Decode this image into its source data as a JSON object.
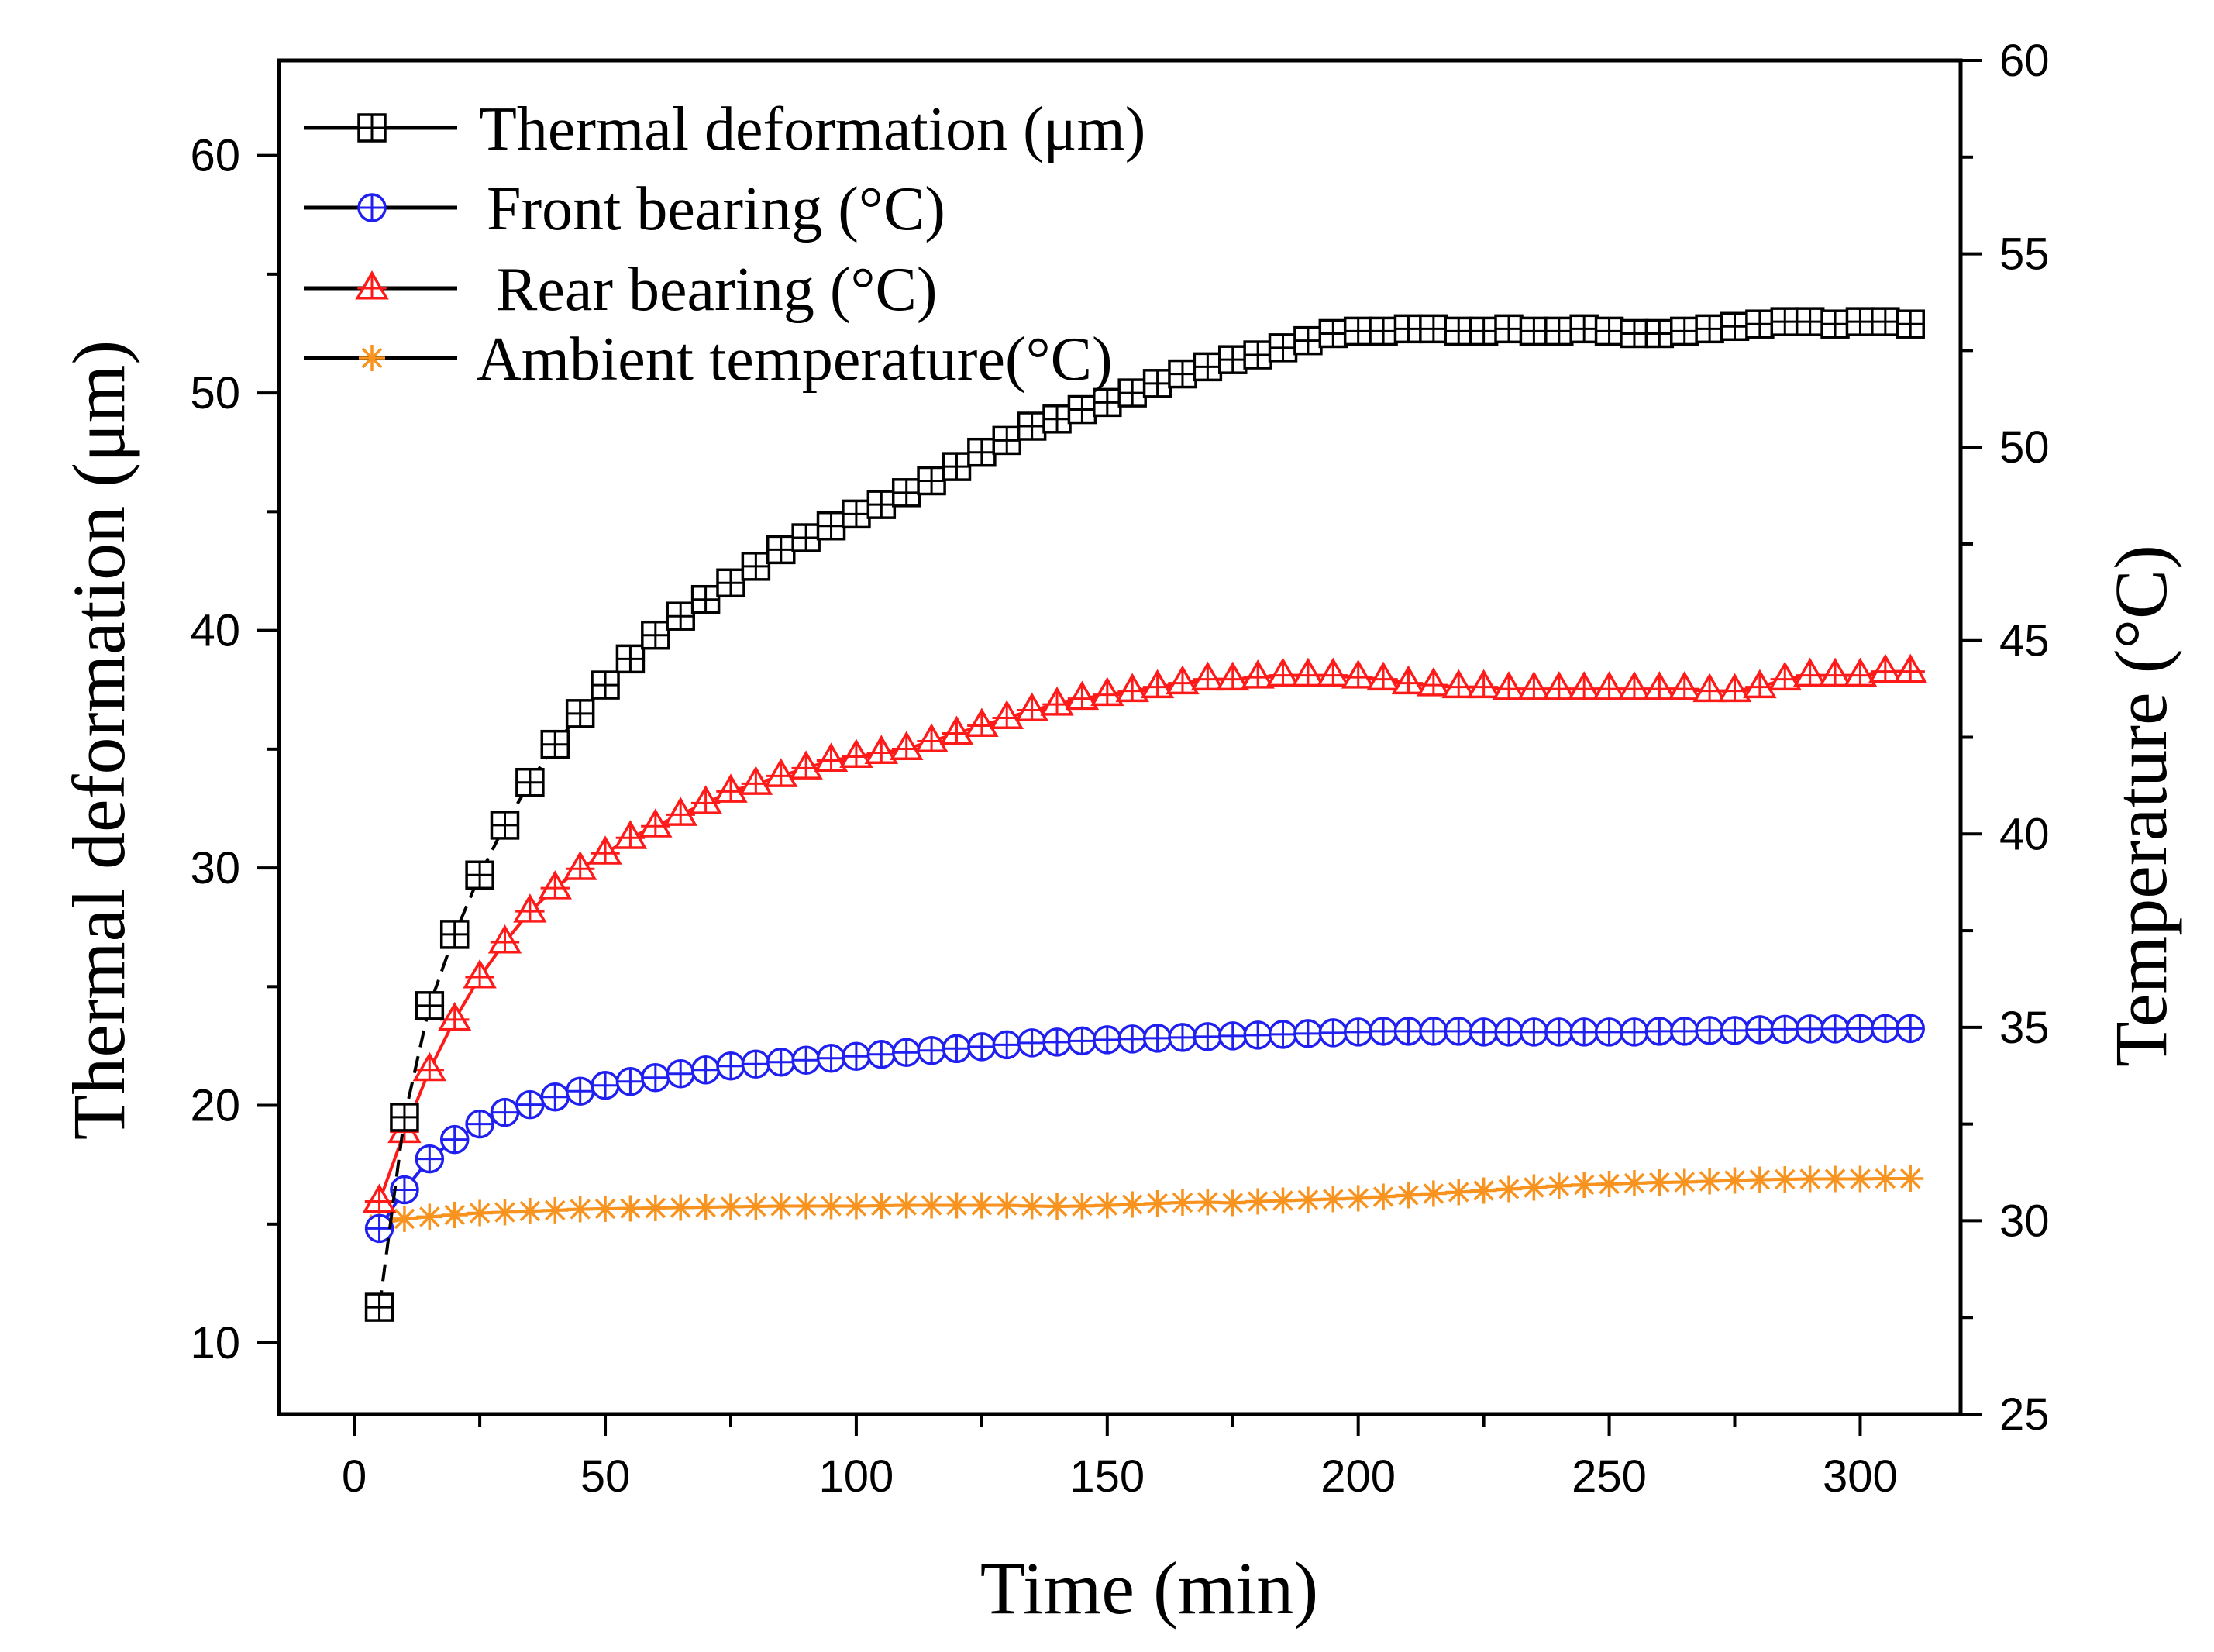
{
  "chart_data": {
    "type": "line",
    "title": "",
    "xlabel": "Time (min)",
    "ylabel_left": "Thermal deformation (μm)",
    "ylabel_right": "Temperature (°C)",
    "xlim": [
      -15,
      320
    ],
    "ylim_left": [
      7,
      64
    ],
    "ylim_right": [
      25,
      60
    ],
    "x_ticks": [
      0,
      50,
      100,
      150,
      200,
      250,
      300
    ],
    "y_left_ticks": [
      10,
      20,
      30,
      40,
      50,
      60
    ],
    "y_right_ticks": [
      25,
      30,
      35,
      40,
      45,
      50,
      55,
      60
    ],
    "grid": false,
    "legend_position": "top-left",
    "series": [
      {
        "name": "Thermal deformation (μm)",
        "axis": "left",
        "marker": "square-plus",
        "color": "#000000",
        "line_style": "dashed",
        "x": [
          5,
          10,
          15,
          20,
          25,
          30,
          35,
          40,
          45,
          50,
          55,
          60,
          65,
          70,
          75,
          80,
          85,
          90,
          95,
          100,
          105,
          110,
          115,
          120,
          125,
          130,
          135,
          140,
          145,
          150,
          155,
          160,
          165,
          170,
          175,
          180,
          185,
          190,
          195,
          200,
          205,
          210,
          215,
          220,
          225,
          230,
          235,
          240,
          245,
          250,
          255,
          260,
          265,
          270,
          275,
          280,
          285,
          290,
          295,
          300,
          305,
          310
        ],
        "values": [
          11.5,
          19.5,
          24.2,
          27.2,
          29.7,
          31.8,
          33.6,
          35.2,
          36.5,
          37.7,
          38.8,
          39.8,
          40.6,
          41.3,
          42.0,
          42.7,
          43.4,
          43.9,
          44.4,
          44.9,
          45.3,
          45.8,
          46.3,
          46.9,
          47.5,
          48.0,
          48.6,
          48.9,
          49.3,
          49.6,
          50.0,
          50.4,
          50.8,
          51.1,
          51.4,
          51.6,
          51.9,
          52.2,
          52.5,
          52.6,
          52.6,
          52.7,
          52.7,
          52.6,
          52.6,
          52.7,
          52.6,
          52.6,
          52.7,
          52.6,
          52.5,
          52.5,
          52.6,
          52.7,
          52.8,
          52.9,
          53.0,
          53.0,
          52.9,
          53.0,
          53.0,
          52.9
        ]
      },
      {
        "name": "Front bearing (°C)",
        "axis": "right",
        "marker": "circle-plus",
        "color": "#1f1ff0",
        "line_style": "solid",
        "x": [
          5,
          10,
          15,
          20,
          25,
          30,
          35,
          40,
          45,
          50,
          55,
          60,
          65,
          70,
          75,
          80,
          85,
          90,
          95,
          100,
          105,
          110,
          115,
          120,
          125,
          130,
          135,
          140,
          145,
          150,
          155,
          160,
          165,
          170,
          175,
          180,
          185,
          190,
          195,
          200,
          205,
          210,
          215,
          220,
          225,
          230,
          235,
          240,
          245,
          250,
          255,
          260,
          265,
          270,
          275,
          280,
          285,
          290,
          295,
          300,
          305,
          310
        ],
        "values": [
          29.8,
          30.8,
          31.6,
          32.1,
          32.5,
          32.8,
          33.0,
          33.2,
          33.35,
          33.5,
          33.6,
          33.7,
          33.8,
          33.9,
          34.0,
          34.05,
          34.1,
          34.15,
          34.2,
          34.25,
          34.3,
          34.35,
          34.4,
          34.45,
          34.5,
          34.55,
          34.6,
          34.62,
          34.65,
          34.68,
          34.7,
          34.72,
          34.74,
          34.76,
          34.78,
          34.8,
          34.82,
          34.84,
          34.86,
          34.88,
          34.9,
          34.9,
          34.9,
          34.9,
          34.88,
          34.88,
          34.88,
          34.88,
          34.88,
          34.88,
          34.88,
          34.9,
          34.9,
          34.92,
          34.92,
          34.94,
          34.95,
          34.96,
          34.96,
          34.97,
          34.97,
          34.97
        ]
      },
      {
        "name": "Rear bearing (°C)",
        "axis": "right",
        "marker": "triangle-plus",
        "color": "#ff1a1a",
        "line_style": "solid",
        "x": [
          5,
          10,
          15,
          20,
          25,
          30,
          35,
          40,
          45,
          50,
          55,
          60,
          65,
          70,
          75,
          80,
          85,
          90,
          95,
          100,
          105,
          110,
          115,
          120,
          125,
          130,
          135,
          140,
          145,
          150,
          155,
          160,
          165,
          170,
          175,
          180,
          185,
          190,
          195,
          200,
          205,
          210,
          215,
          220,
          225,
          230,
          235,
          240,
          245,
          250,
          255,
          260,
          265,
          270,
          275,
          280,
          285,
          290,
          295,
          300,
          305,
          310
        ],
        "values": [
          30.5,
          32.3,
          33.9,
          35.2,
          36.3,
          37.2,
          38.0,
          38.6,
          39.1,
          39.5,
          39.9,
          40.2,
          40.5,
          40.8,
          41.1,
          41.3,
          41.5,
          41.7,
          41.9,
          42.0,
          42.1,
          42.2,
          42.4,
          42.6,
          42.8,
          43.0,
          43.2,
          43.35,
          43.5,
          43.6,
          43.7,
          43.8,
          43.9,
          44.0,
          44.0,
          44.05,
          44.1,
          44.1,
          44.1,
          44.05,
          44.0,
          43.9,
          43.85,
          43.8,
          43.8,
          43.75,
          43.75,
          43.75,
          43.75,
          43.75,
          43.75,
          43.75,
          43.75,
          43.7,
          43.7,
          43.8,
          44.0,
          44.1,
          44.1,
          44.1,
          44.2,
          44.2
        ]
      },
      {
        "name": "Ambient temperature(°C)",
        "axis": "right",
        "marker": "asterisk",
        "color": "#f7931e",
        "line_style": "solid",
        "x": [
          5,
          10,
          15,
          20,
          25,
          30,
          35,
          40,
          45,
          50,
          55,
          60,
          65,
          70,
          75,
          80,
          85,
          90,
          95,
          100,
          105,
          110,
          115,
          120,
          125,
          130,
          135,
          140,
          145,
          150,
          155,
          160,
          165,
          170,
          175,
          180,
          185,
          190,
          195,
          200,
          205,
          210,
          215,
          220,
          225,
          230,
          235,
          240,
          245,
          250,
          255,
          260,
          265,
          270,
          275,
          280,
          285,
          290,
          295,
          300,
          305,
          310
        ],
        "values": [
          29.9,
          30.05,
          30.1,
          30.15,
          30.2,
          30.22,
          30.25,
          30.27,
          30.3,
          30.31,
          30.32,
          30.33,
          30.34,
          30.35,
          30.36,
          30.37,
          30.38,
          30.38,
          30.38,
          30.38,
          30.39,
          30.4,
          30.4,
          30.4,
          30.4,
          30.4,
          30.38,
          30.37,
          30.38,
          30.4,
          30.42,
          30.45,
          30.47,
          30.48,
          30.46,
          30.5,
          30.52,
          30.54,
          30.56,
          30.58,
          30.62,
          30.66,
          30.7,
          30.74,
          30.78,
          30.82,
          30.86,
          30.9,
          30.93,
          30.95,
          30.97,
          30.99,
          31.0,
          31.02,
          31.04,
          31.06,
          31.07,
          31.08,
          31.08,
          31.08,
          31.09,
          31.09
        ]
      }
    ]
  }
}
